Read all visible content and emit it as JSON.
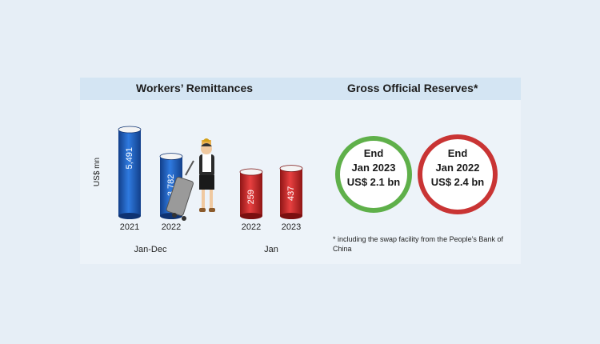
{
  "headers": {
    "left": "Workers’ Remittances",
    "right": "Gross Official Reserves*"
  },
  "chart_data": {
    "type": "bar",
    "title": "Workers’ Remittances",
    "ylabel": "US$ mn",
    "groups": [
      {
        "label": "Jan-Dec",
        "categories": [
          "2021",
          "2022"
        ],
        "values": [
          5491,
          3782
        ],
        "value_labels": [
          "5,491",
          "3,782"
        ],
        "color": "#1f5fbf"
      },
      {
        "label": "Jan",
        "categories": [
          "2022",
          "2023"
        ],
        "values": [
          259,
          437
        ],
        "value_labels": [
          "259",
          "437"
        ],
        "color": "#d42a2a"
      }
    ]
  },
  "reserves": [
    {
      "line1": "End",
      "line2": "Jan 2023",
      "line3": "US$ 2.1 bn",
      "ring_color": "#5fb04a"
    },
    {
      "line1": "End",
      "line2": "Jan 2022",
      "line3": "US$ 2.4 bn",
      "ring_color": "#c93434"
    }
  ],
  "footnote": "* including the swap facility from the People’s Bank of China",
  "illustration": "traveler-with-suitcase-icon"
}
